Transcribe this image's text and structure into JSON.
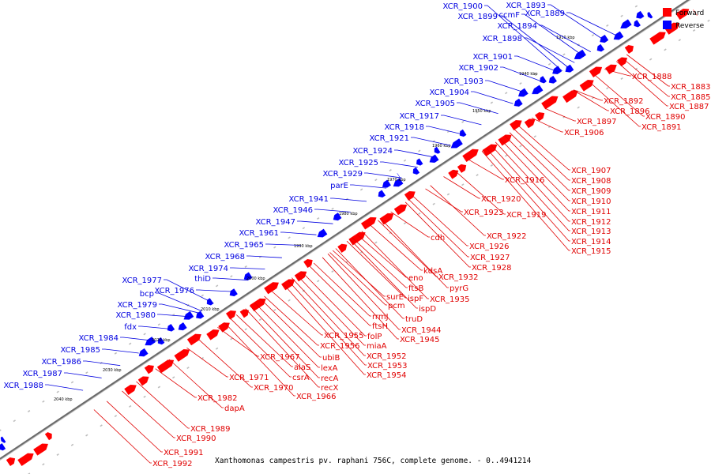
{
  "caption": "Xanthomonas campestris pv. raphani 756C, complete genome. - 0..4941214",
  "colors": {
    "forward": "#ff0000",
    "reverse": "#0000ff",
    "backbone": "#888888",
    "forward_label": "#e00000",
    "reverse_label": "#0000e0"
  },
  "legend": [
    {
      "label": "Forward",
      "color": "#ff0000"
    },
    {
      "label": "Reverse",
      "color": "#0000ff"
    }
  ],
  "backbone_ticks": [
    "1910 kbp",
    "1940 kbp",
    "1950 kbp",
    "1960 kbp",
    "1970 kbp",
    "1980 kbp",
    "1990 kbp",
    "2000 kbp",
    "2010 kbp",
    "2020 kbp",
    "2030 kbp",
    "2040 kbp"
  ],
  "forward_genes": [
    "XCR_1888",
    "XCR_1883",
    "XCR_1885",
    "XCR_1887",
    "XCR_1892",
    "XCR_1890",
    "XCR_1896",
    "XCR_1891",
    "XCR_1897",
    "XCR_1906",
    "XCR_1907",
    "XCR_1916",
    "XCR_1908",
    "XCR_1909",
    "XCR_1910",
    "XCR_1920",
    "XCR_1911",
    "XCR_1923",
    "XCR_1919",
    "XCR_1912",
    "XCR_1913",
    "XCR_1922",
    "XCR_1914",
    "cdh",
    "XCR_1926",
    "XCR_1915",
    "XCR_1927",
    "XCR_1928",
    "kdsA",
    "eno",
    "XCR_1932",
    "ftsB",
    "pyrG",
    "surE",
    "ispF",
    "XCR_1935",
    "pcm",
    "ispD",
    "rrmJ",
    "truD",
    "ftsH",
    "XCR_1944",
    "XCR_1945",
    "XCR_1955",
    "folP",
    "XCR_1956",
    "miaA",
    "XCR_1967",
    "ubiB",
    "XCR_1952",
    "alaS",
    "lexA",
    "XCR_1953",
    "XCR_1971",
    "csrA",
    "recA",
    "XCR_1954",
    "XCR_1970",
    "recX",
    "XCR_1966",
    "XCR_1982",
    "dapA",
    "XCR_1989",
    "XCR_1990",
    "XCR_1991",
    "XCR_1992"
  ],
  "reverse_genes": [
    "XCR_1900",
    "XCR_1893",
    "XCR_1899",
    "ccmF",
    "XCR_1889",
    "XCR_1894",
    "XCR_1898",
    "XCR_1901",
    "XCR_1902",
    "XCR_1903",
    "XCR_1904",
    "XCR_1905",
    "XCR_1917",
    "XCR_1918",
    "XCR_1921",
    "XCR_1924",
    "XCR_1925",
    "XCR_1929",
    "parE",
    "XCR_1941",
    "XCR_1946",
    "XCR_1947",
    "XCR_1961",
    "XCR_1965",
    "XCR_1968",
    "XCR_1974",
    "thiD",
    "XCR_1977",
    "bcp",
    "XCR_1976",
    "XCR_1979",
    "XCR_1980",
    "fdx",
    "XCR_1984",
    "XCR_1985",
    "XCR_1986",
    "XCR_1987",
    "XCR_1988"
  ]
}
